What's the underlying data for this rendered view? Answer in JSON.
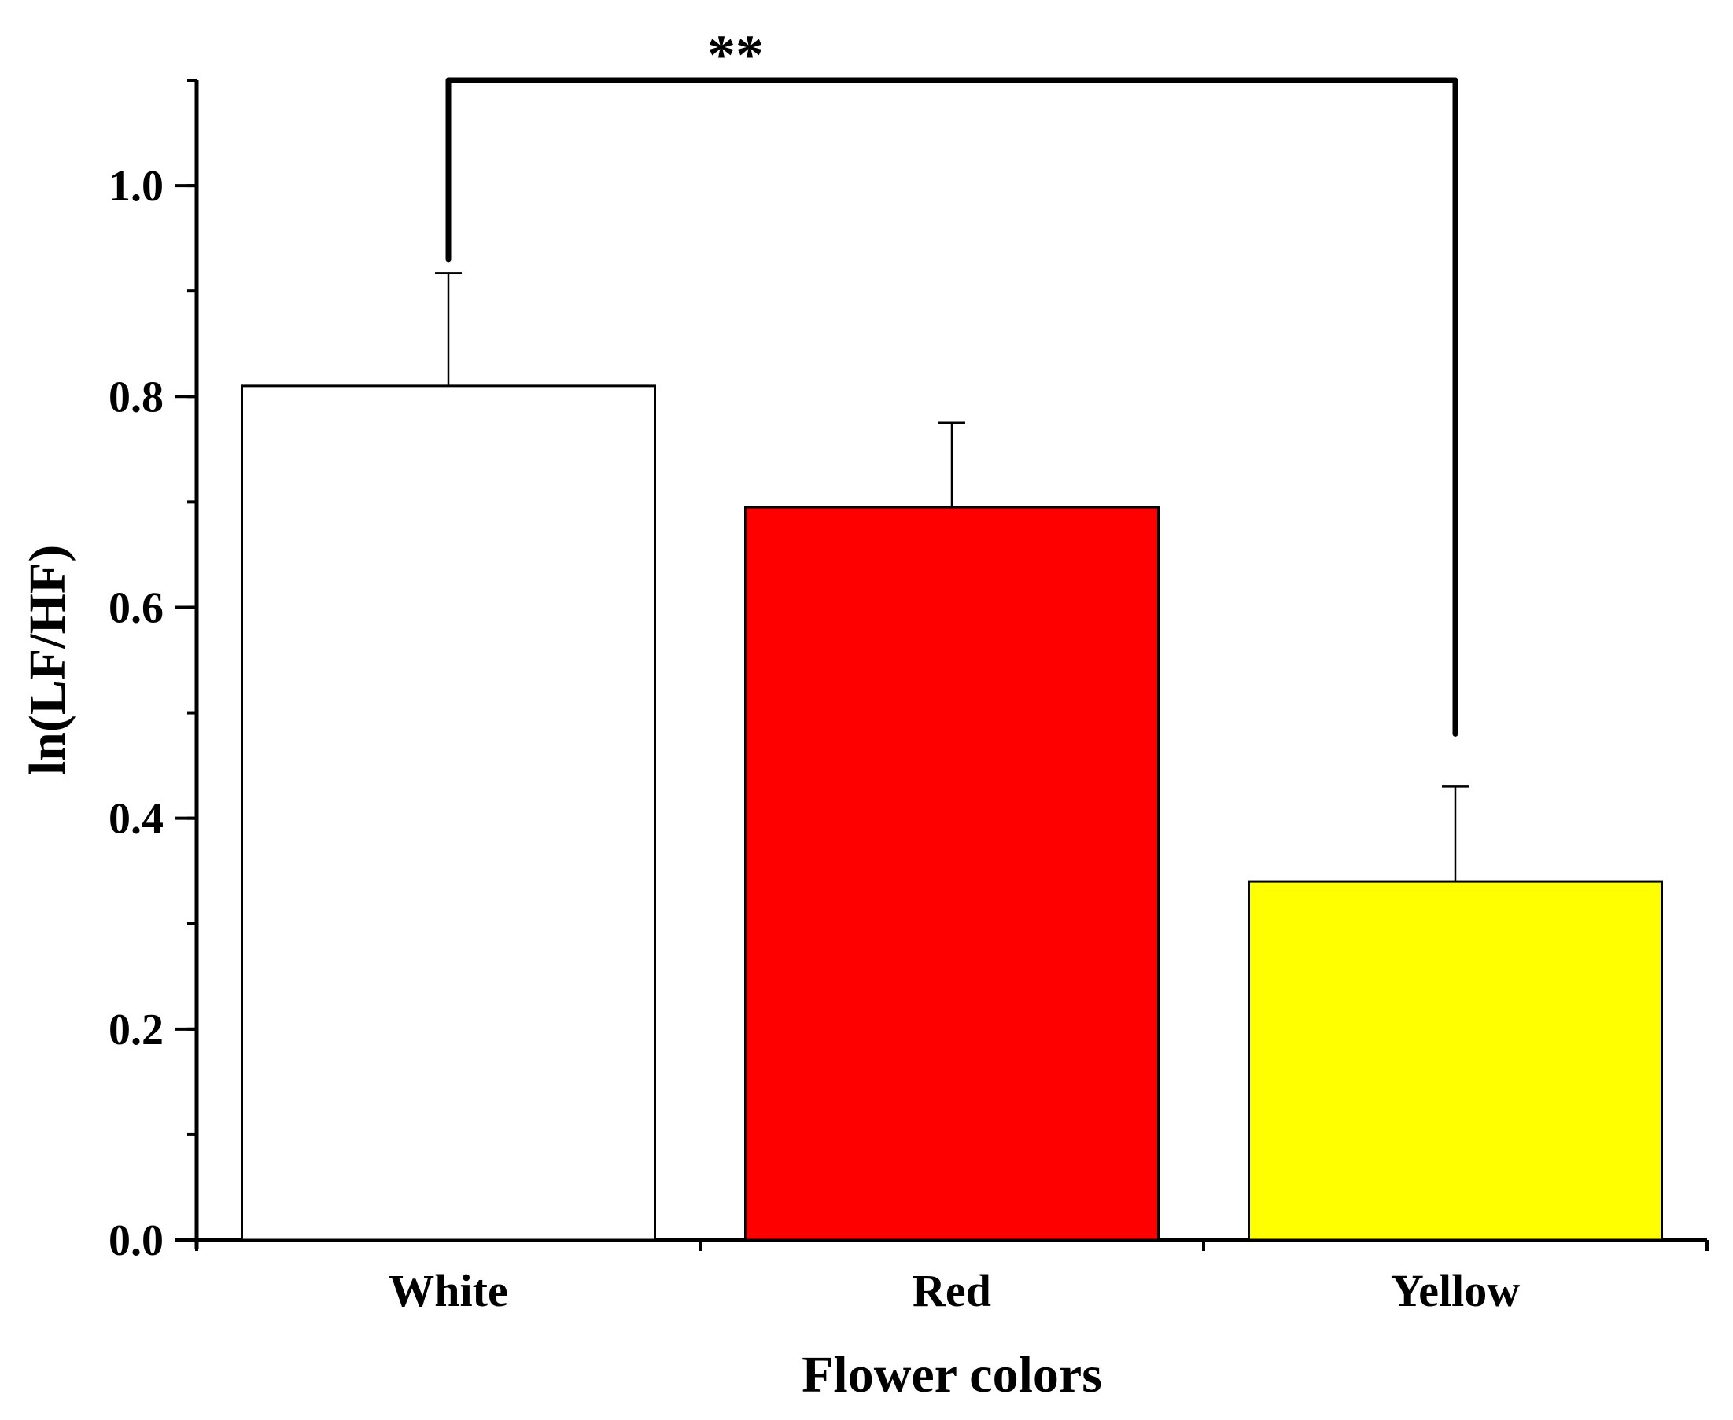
{
  "chart_data": {
    "type": "bar",
    "title": "",
    "xlabel": "Flower colors",
    "ylabel": "ln(LF/HF)",
    "categories": [
      "White",
      "Red",
      "Yellow"
    ],
    "values": [
      0.81,
      0.695,
      0.34
    ],
    "error_bars": [
      0.107,
      0.08,
      0.09
    ],
    "bar_colors": [
      "#ffffff",
      "#ff0000",
      "#ffff00"
    ],
    "ylim": [
      0,
      1.1
    ],
    "y_major_ticks": [
      0.0,
      0.2,
      0.4,
      0.6,
      0.8,
      1.0
    ],
    "y_tick_labels": [
      "0.0",
      "0.2",
      "0.4",
      "0.6",
      "0.8",
      "1.0"
    ],
    "y_minor_step": 0.1,
    "grid": false,
    "legend": "none",
    "significance": {
      "label": "**",
      "from_category": "White",
      "to_category": "Yellow",
      "bracket_y": 1.1,
      "from_leg_end": 0.93,
      "to_leg_end": 0.48
    }
  }
}
